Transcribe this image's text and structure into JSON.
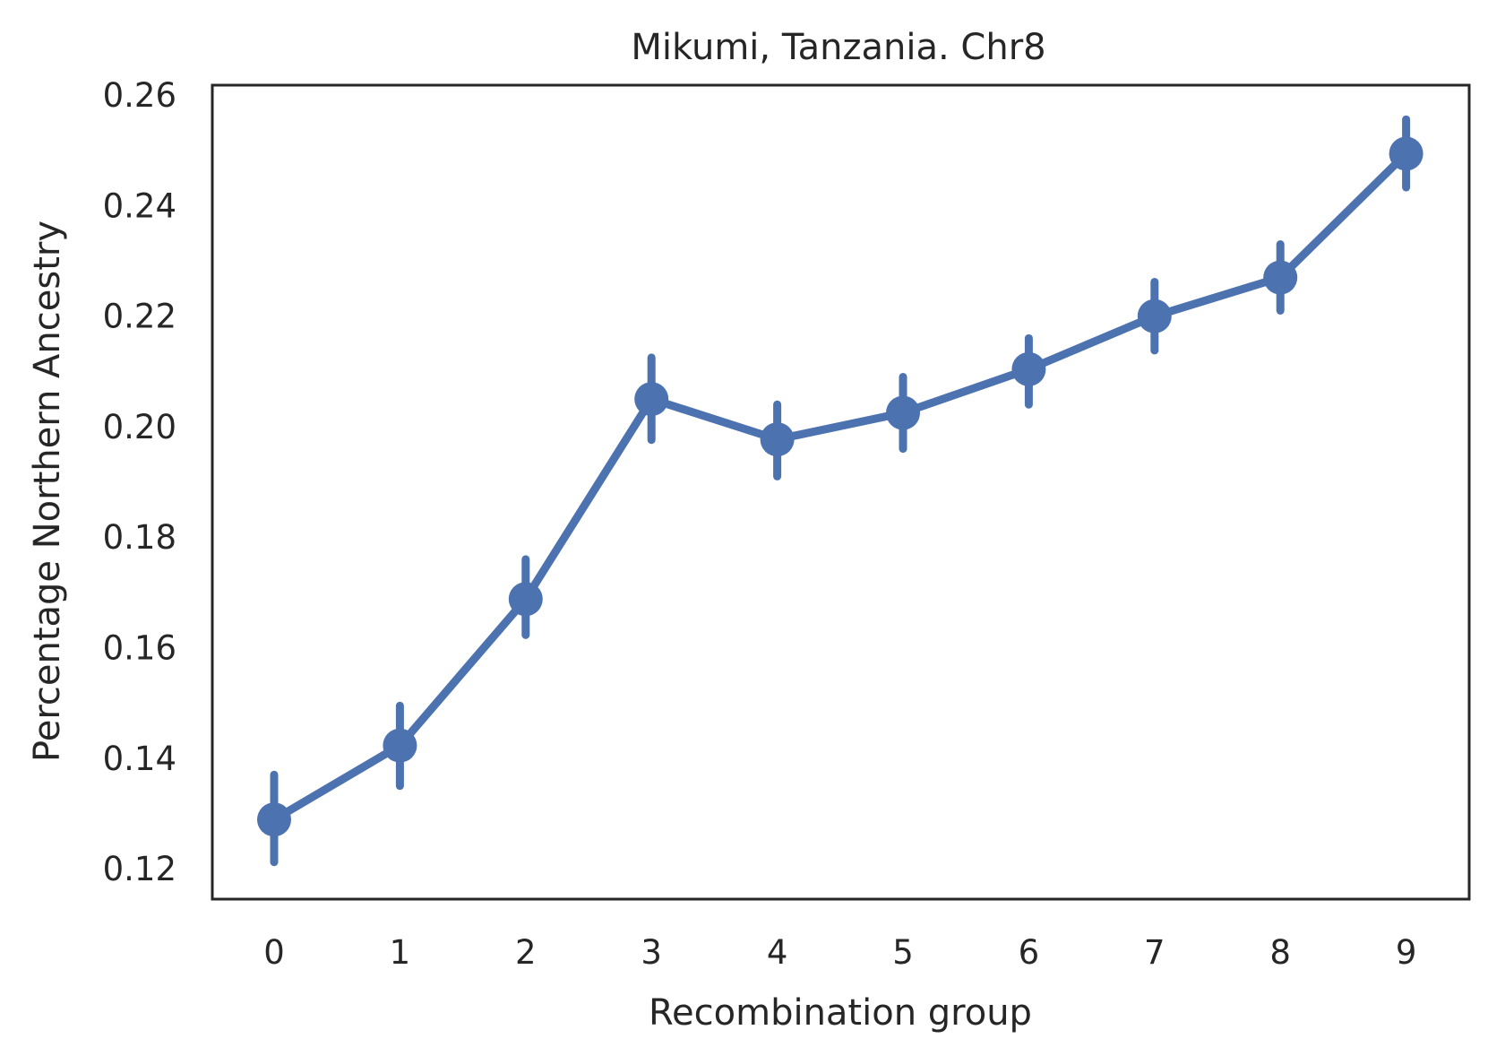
{
  "chart_data": {
    "type": "line",
    "title": "Mikumi, Tanzania. Chr8",
    "xlabel": "Recombination group",
    "ylabel": "Percentage Northern Ancestry",
    "categories": [
      "0",
      "1",
      "2",
      "3",
      "4",
      "5",
      "6",
      "7",
      "8",
      "9"
    ],
    "yticks": [
      "0.12",
      "0.14",
      "0.16",
      "0.18",
      "0.20",
      "0.22",
      "0.24",
      "0.26"
    ],
    "ylim": [
      0.1145,
      0.2618
    ],
    "grid": false,
    "color": "#4c72b0",
    "series": [
      {
        "values": [
          0.1289,
          0.1423,
          0.1688,
          0.205,
          0.1977,
          0.2025,
          0.2104,
          0.22,
          0.227,
          0.2494
        ],
        "error_low": [
          0.1212,
          0.135,
          0.1623,
          0.1976,
          0.191,
          0.196,
          0.204,
          0.2138,
          0.221,
          0.2433
        ],
        "error_high": [
          0.137,
          0.1495,
          0.176,
          0.2125,
          0.204,
          0.209,
          0.216,
          0.2262,
          0.233,
          0.2556
        ]
      }
    ]
  }
}
